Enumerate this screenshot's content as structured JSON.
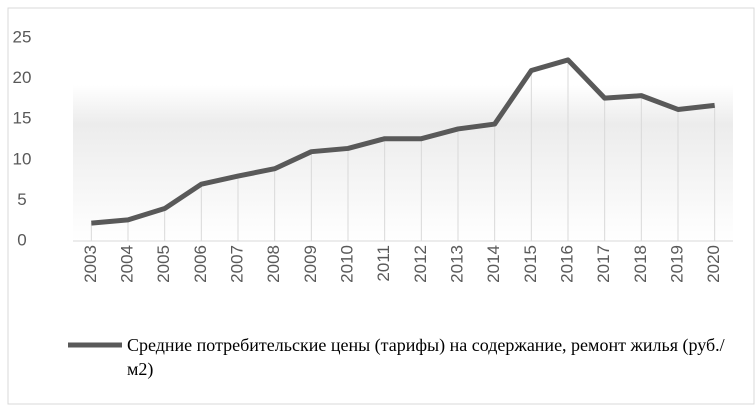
{
  "chart_data": {
    "type": "line",
    "categories": [
      "2003",
      "2004",
      "2005",
      "2006",
      "2007",
      "2008",
      "2009",
      "2010",
      "2011",
      "2012",
      "2013",
      "2014",
      "2015",
      "2016",
      "2017",
      "2018",
      "2019",
      "2020"
    ],
    "series": [
      {
        "name": "Средние потребительские цены (тарифы) на содержание, ремонт жилья (руб./м2)",
        "color": "#595959",
        "values": [
          2.2,
          2.6,
          4.0,
          7.0,
          8.0,
          8.9,
          11.0,
          11.4,
          12.6,
          12.6,
          13.8,
          14.4,
          21.0,
          22.3,
          17.6,
          17.9,
          16.2,
          16.7
        ]
      }
    ],
    "ylim": [
      0,
      25
    ],
    "yticks": [
      0,
      5,
      10,
      15,
      20,
      25
    ],
    "drop_lines": true,
    "legend": "bottom"
  }
}
